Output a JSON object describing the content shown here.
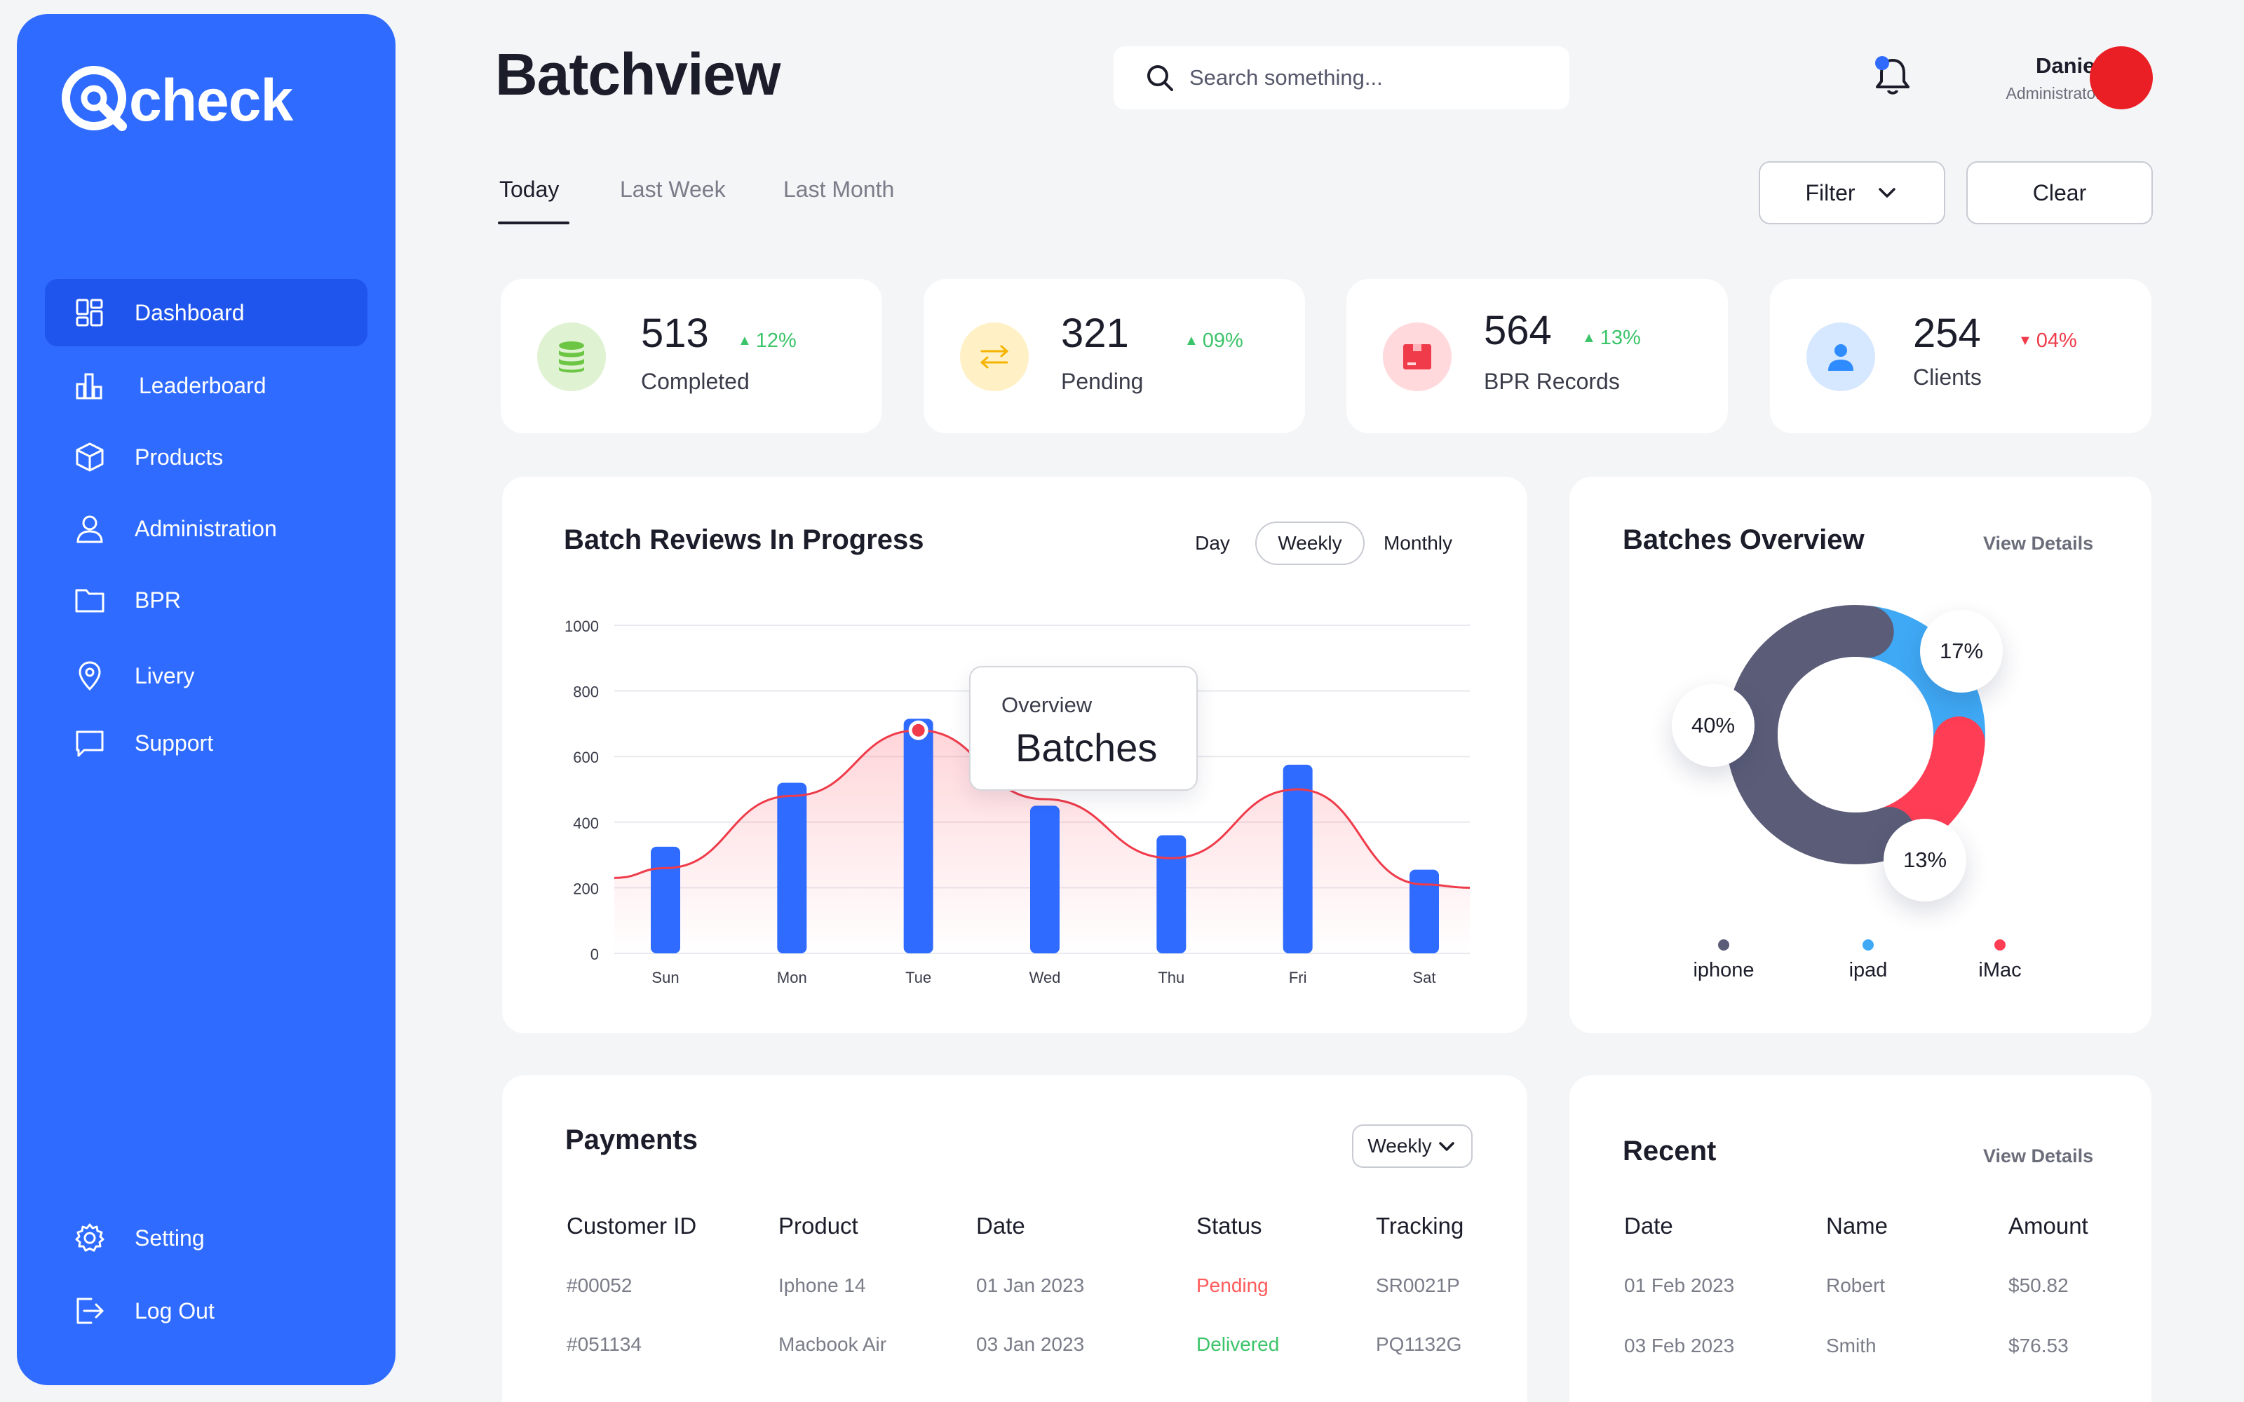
{
  "app": {
    "logo_text": "check"
  },
  "sidebar": {
    "items": [
      {
        "label": "Dashboard",
        "icon": "dashboard-icon"
      },
      {
        "label": "Leaderboard",
        "icon": "chart-bars-icon"
      },
      {
        "label": "Products",
        "icon": "box-icon"
      },
      {
        "label": "Administration",
        "icon": "user-icon"
      },
      {
        "label": "BPR",
        "icon": "folder-icon"
      },
      {
        "label": "Livery",
        "icon": "location-pin-icon"
      },
      {
        "label": "Support",
        "icon": "chat-icon"
      }
    ],
    "bottom": [
      {
        "label": "Setting",
        "icon": "gear-icon"
      },
      {
        "label": "Log Out",
        "icon": "logout-icon"
      }
    ]
  },
  "header": {
    "title": "Batchview",
    "search_placeholder": "Search something...",
    "user_name": "Daniel",
    "user_role": "Administrator"
  },
  "tabs": [
    "Today",
    "Last Week",
    "Last Month"
  ],
  "actions": {
    "filter": "Filter",
    "clear": "Clear"
  },
  "stats": [
    {
      "value": "513",
      "trend": "12%",
      "direction": "up",
      "label": "Completed",
      "color": "#6cc644",
      "bg": "#dff2d2"
    },
    {
      "value": "321",
      "trend": "09%",
      "direction": "up",
      "label": "Pending",
      "color": "#f5b400",
      "bg": "#fff0c6"
    },
    {
      "value": "564",
      "trend": "13%",
      "direction": "up",
      "label": "BPR Records",
      "color": "#ef3b4a",
      "bg": "#ffd9dc"
    },
    {
      "value": "254",
      "trend": "04%",
      "direction": "down",
      "label": "Clients",
      "color": "#2f8cff",
      "bg": "#d6e8ff"
    }
  ],
  "chart_card": {
    "title": "Batch Reviews In Progress",
    "periods": [
      "Day",
      "Weekly",
      "Monthly"
    ],
    "active_period": "Weekly",
    "tooltip": {
      "subtitle": "Overview",
      "title": "Batches"
    }
  },
  "chart_data": {
    "type": "bar",
    "categories": [
      "Sun",
      "Mon",
      "Tue",
      "Wed",
      "Thu",
      "Fri",
      "Sat"
    ],
    "values": [
      325,
      520,
      715,
      450,
      360,
      575,
      255
    ],
    "line": [
      260,
      480,
      680,
      470,
      290,
      500,
      210
    ],
    "ylim": [
      0,
      1000
    ],
    "yticks": [
      0,
      200,
      400,
      600,
      800,
      1000
    ],
    "bar_color": "#2f6bff",
    "line_color": "#ef3b4a",
    "grid": true
  },
  "overview": {
    "title": "Batches Overview",
    "view_details": "View Details",
    "segments": [
      {
        "name": "iphone",
        "value": 40,
        "label": "40%",
        "color": "#5b5d78"
      },
      {
        "name": "ipad",
        "value": 17,
        "label": "17%",
        "color": "#3fa9f5"
      },
      {
        "name": "iMac",
        "value": 13,
        "label": "13%",
        "color": "#ff3e55"
      }
    ]
  },
  "payments": {
    "title": "Payments",
    "period": "Weekly",
    "columns": [
      "Customer ID",
      "Product",
      "Date",
      "Status",
      "Tracking"
    ],
    "rows": [
      {
        "id": "#00052",
        "product": "Iphone 14",
        "date": "01 Jan 2023",
        "status": "Pending",
        "status_color": "#ff5a5a",
        "tracking": "SR0021P"
      },
      {
        "id": "#051134",
        "product": "Macbook Air",
        "date": "03 Jan 2023",
        "status": "Delivered",
        "status_color": "#3cc46a",
        "tracking": "PQ1132G"
      }
    ]
  },
  "recent": {
    "title": "Recent",
    "view_details": "View Details",
    "columns": [
      "Date",
      "Name",
      "Amount"
    ],
    "rows": [
      {
        "date": "01 Feb 2023",
        "name": "Robert",
        "amount": "$50.82"
      },
      {
        "date": "03 Feb 2023",
        "name": "Smith",
        "amount": "$76.53"
      }
    ]
  }
}
